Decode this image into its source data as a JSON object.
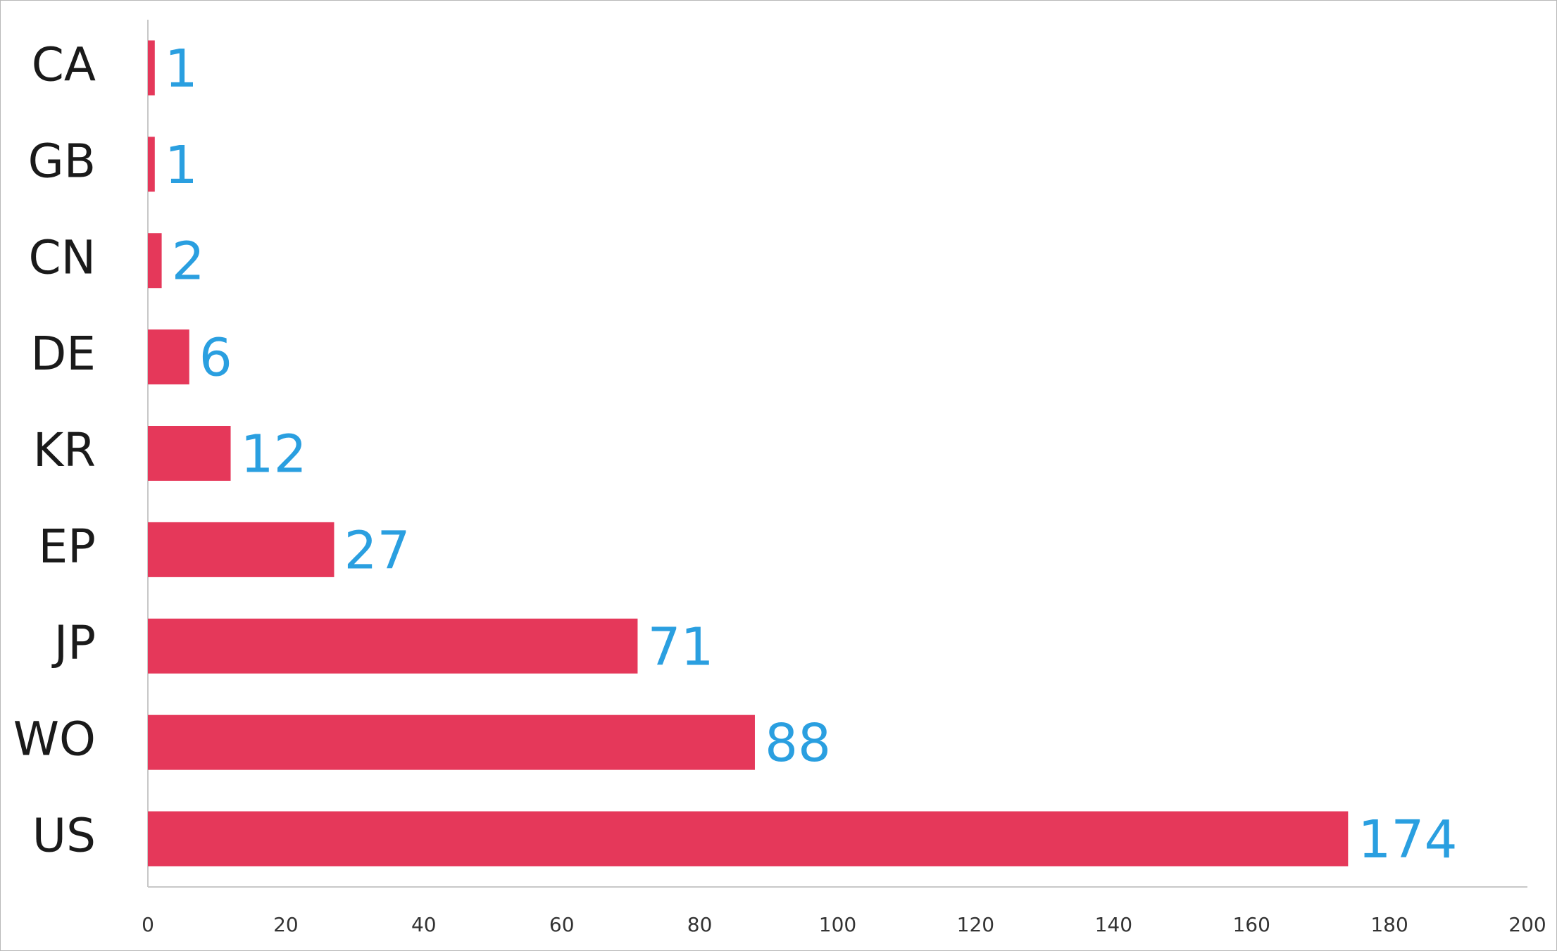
{
  "chart_data": {
    "type": "bar",
    "orientation": "horizontal",
    "categories": [
      "CA",
      "GB",
      "CN",
      "DE",
      "KR",
      "EP",
      "JP",
      "WO",
      "US"
    ],
    "values": [
      1,
      1,
      2,
      6,
      12,
      27,
      71,
      88,
      174
    ],
    "color": "#e5385a",
    "label_color": "#2a9fe0",
    "xlim": [
      0,
      200
    ],
    "xticks": [
      0,
      20,
      40,
      60,
      80,
      100,
      120,
      140,
      160,
      180,
      200
    ],
    "grid": false
  }
}
